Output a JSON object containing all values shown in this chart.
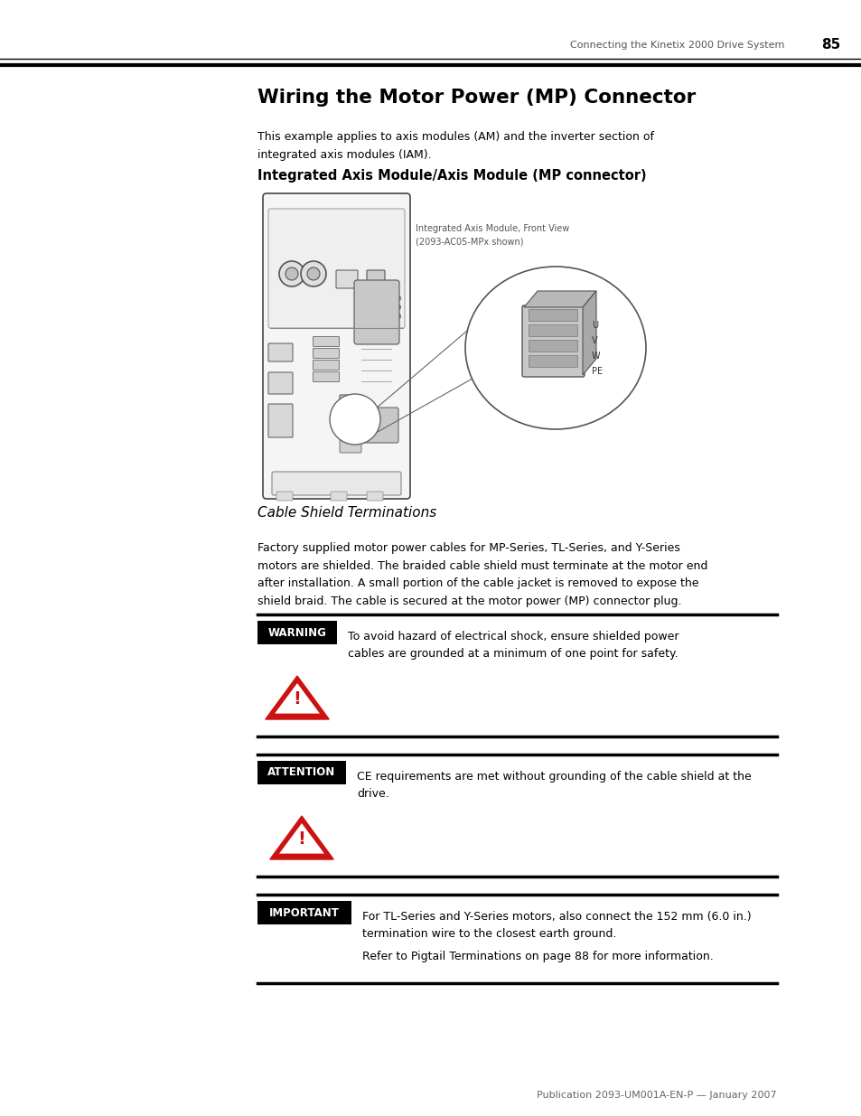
{
  "page_header_text": "Connecting the Kinetix 2000 Drive System",
  "page_number": "85",
  "title": "Wiring the Motor Power (MP) Connector",
  "intro_text": "This example applies to axis modules (AM) and the inverter section of\nintegrated axis modules (IAM).",
  "section_heading": "Integrated Axis Module/Axis Module (MP connector)",
  "diagram_caption": "Integrated Axis Module, Front View\n(2093-AC05-MPx shown)",
  "cable_shield_title": "Cable Shield Terminations",
  "cable_shield_body": "Factory supplied motor power cables for MP-Series, TL-Series, and Y-Series\nmotors are shielded. The braided cable shield must terminate at the motor end\nafter installation. A small portion of the cable jacket is removed to expose the\nshield braid. The cable is secured at the motor power (MP) connector plug.",
  "warning_label": "WARNING",
  "warning_text": "To avoid hazard of electrical shock, ensure shielded power\ncables are grounded at a minimum of one point for safety.",
  "attention_label": "ATTENTION",
  "attention_text": "CE requirements are met without grounding of the cable shield at the\ndrive.",
  "important_label": "IMPORTANT",
  "important_text1": "For TL-Series and Y-Series motors, also connect the 152 mm (6.0 in.)\ntermination wire to the closest earth ground.",
  "important_text2": "Refer to Pigtail Terminations on page 88 for more information.",
  "footer_text": "Publication 2093-UM001A-EN-P — January 2007",
  "bg_color": "#ffffff",
  "text_color": "#000000",
  "triangle_color": "#cc1111",
  "body_font_size": 9.0,
  "section_heading_font_size": 10.5,
  "title_font_size": 15.5
}
